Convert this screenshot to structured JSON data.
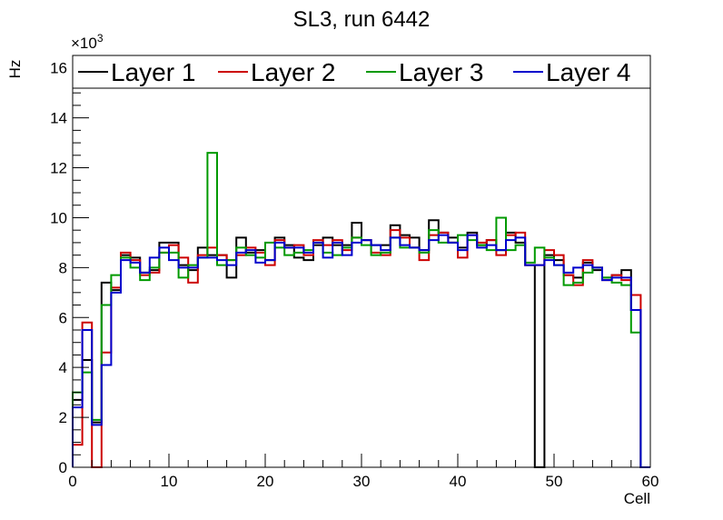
{
  "chart_data": {
    "type": "line",
    "title": "SL3, run 6442",
    "xlabel": "Cell",
    "ylabel": "Hz",
    "y_exponent_label": "×10",
    "y_exponent_power": "3",
    "xlim": [
      0,
      60
    ],
    "ylim": [
      0,
      16.5
    ],
    "y_unit_multiplier": 1000,
    "x_ticks": [
      0,
      10,
      20,
      30,
      40,
      50,
      60
    ],
    "y_ticks": [
      0,
      2,
      4,
      6,
      8,
      10,
      12,
      14,
      16
    ],
    "x_tick_labels": [
      "0",
      "10",
      "20",
      "30",
      "40",
      "50",
      "60"
    ],
    "y_tick_labels": [
      "0",
      "2",
      "4",
      "6",
      "8",
      "10",
      "12",
      "14",
      "16"
    ],
    "grid": false,
    "legend_position": "top",
    "bin_edges_start": 0,
    "bin_width": 1,
    "series": [
      {
        "name": "Layer 1",
        "color": "#000000",
        "values": [
          2.7,
          4.3,
          1.8,
          7.4,
          7.1,
          8.5,
          8.4,
          7.8,
          7.9,
          9.0,
          9.0,
          8.1,
          7.9,
          8.8,
          8.5,
          8.5,
          7.6,
          9.2,
          8.6,
          8.7,
          8.3,
          9.2,
          8.9,
          8.4,
          8.3,
          8.9,
          9.2,
          8.9,
          8.9,
          9.8,
          9.1,
          8.9,
          8.9,
          9.7,
          9.3,
          9.2,
          8.7,
          9.9,
          9.4,
          9.2,
          8.8,
          9.4,
          8.9,
          9.1,
          8.7,
          9.4,
          9.0,
          8.1,
          0.0,
          8.5,
          8.3,
          7.7,
          7.6,
          8.2,
          7.9,
          7.6,
          7.7,
          7.9,
          6.3,
          0.0
        ]
      },
      {
        "name": "Layer 2",
        "color": "#cc0000",
        "values": [
          0.9,
          5.8,
          0.0,
          4.6,
          7.2,
          8.6,
          8.3,
          7.7,
          7.8,
          8.6,
          8.9,
          8.4,
          7.4,
          8.5,
          8.8,
          8.5,
          8.3,
          8.5,
          8.8,
          8.6,
          8.1,
          9.1,
          8.8,
          8.9,
          8.5,
          9.1,
          8.9,
          9.1,
          8.7,
          9.2,
          9.1,
          8.6,
          8.5,
          9.5,
          9.2,
          8.8,
          8.3,
          9.3,
          9.4,
          9.0,
          8.4,
          9.3,
          9.0,
          9.1,
          8.5,
          9.3,
          9.4,
          8.1,
          8.1,
          8.7,
          8.5,
          7.7,
          7.3,
          8.3,
          8.0,
          7.5,
          7.7,
          7.5,
          6.9,
          0.0
        ]
      },
      {
        "name": "Layer 3",
        "color": "#009900",
        "values": [
          3.0,
          3.8,
          1.9,
          6.5,
          7.7,
          8.4,
          8.0,
          7.5,
          8.0,
          8.6,
          8.6,
          7.6,
          8.1,
          8.4,
          12.6,
          8.1,
          8.3,
          8.8,
          8.5,
          8.4,
          9.0,
          8.8,
          8.5,
          8.6,
          8.7,
          9.0,
          8.6,
          8.5,
          8.8,
          9.2,
          8.9,
          8.5,
          8.6,
          9.2,
          8.8,
          8.8,
          8.6,
          9.5,
          9.0,
          9.0,
          9.3,
          9.1,
          8.9,
          8.7,
          10.0,
          8.7,
          8.9,
          8.2,
          8.8,
          8.4,
          8.1,
          7.3,
          7.4,
          7.8,
          8.0,
          7.6,
          7.4,
          7.3,
          5.4,
          0.0
        ]
      },
      {
        "name": "Layer 4",
        "color": "#0000cc",
        "values": [
          2.4,
          5.5,
          1.7,
          4.1,
          7.0,
          8.3,
          8.2,
          7.8,
          8.4,
          8.8,
          8.3,
          8.0,
          8.0,
          8.4,
          8.4,
          8.3,
          8.1,
          8.6,
          8.7,
          8.2,
          8.3,
          9.0,
          8.8,
          8.8,
          8.6,
          9.0,
          8.4,
          9.0,
          8.5,
          9.0,
          9.1,
          8.9,
          8.7,
          9.2,
          8.9,
          8.8,
          8.7,
          9.1,
          9.3,
          9.0,
          8.7,
          9.3,
          8.8,
          8.9,
          8.7,
          9.1,
          9.2,
          8.1,
          8.1,
          8.3,
          8.1,
          7.8,
          8.0,
          8.1,
          8.0,
          7.5,
          7.6,
          7.6,
          6.3,
          0.0
        ]
      }
    ]
  }
}
